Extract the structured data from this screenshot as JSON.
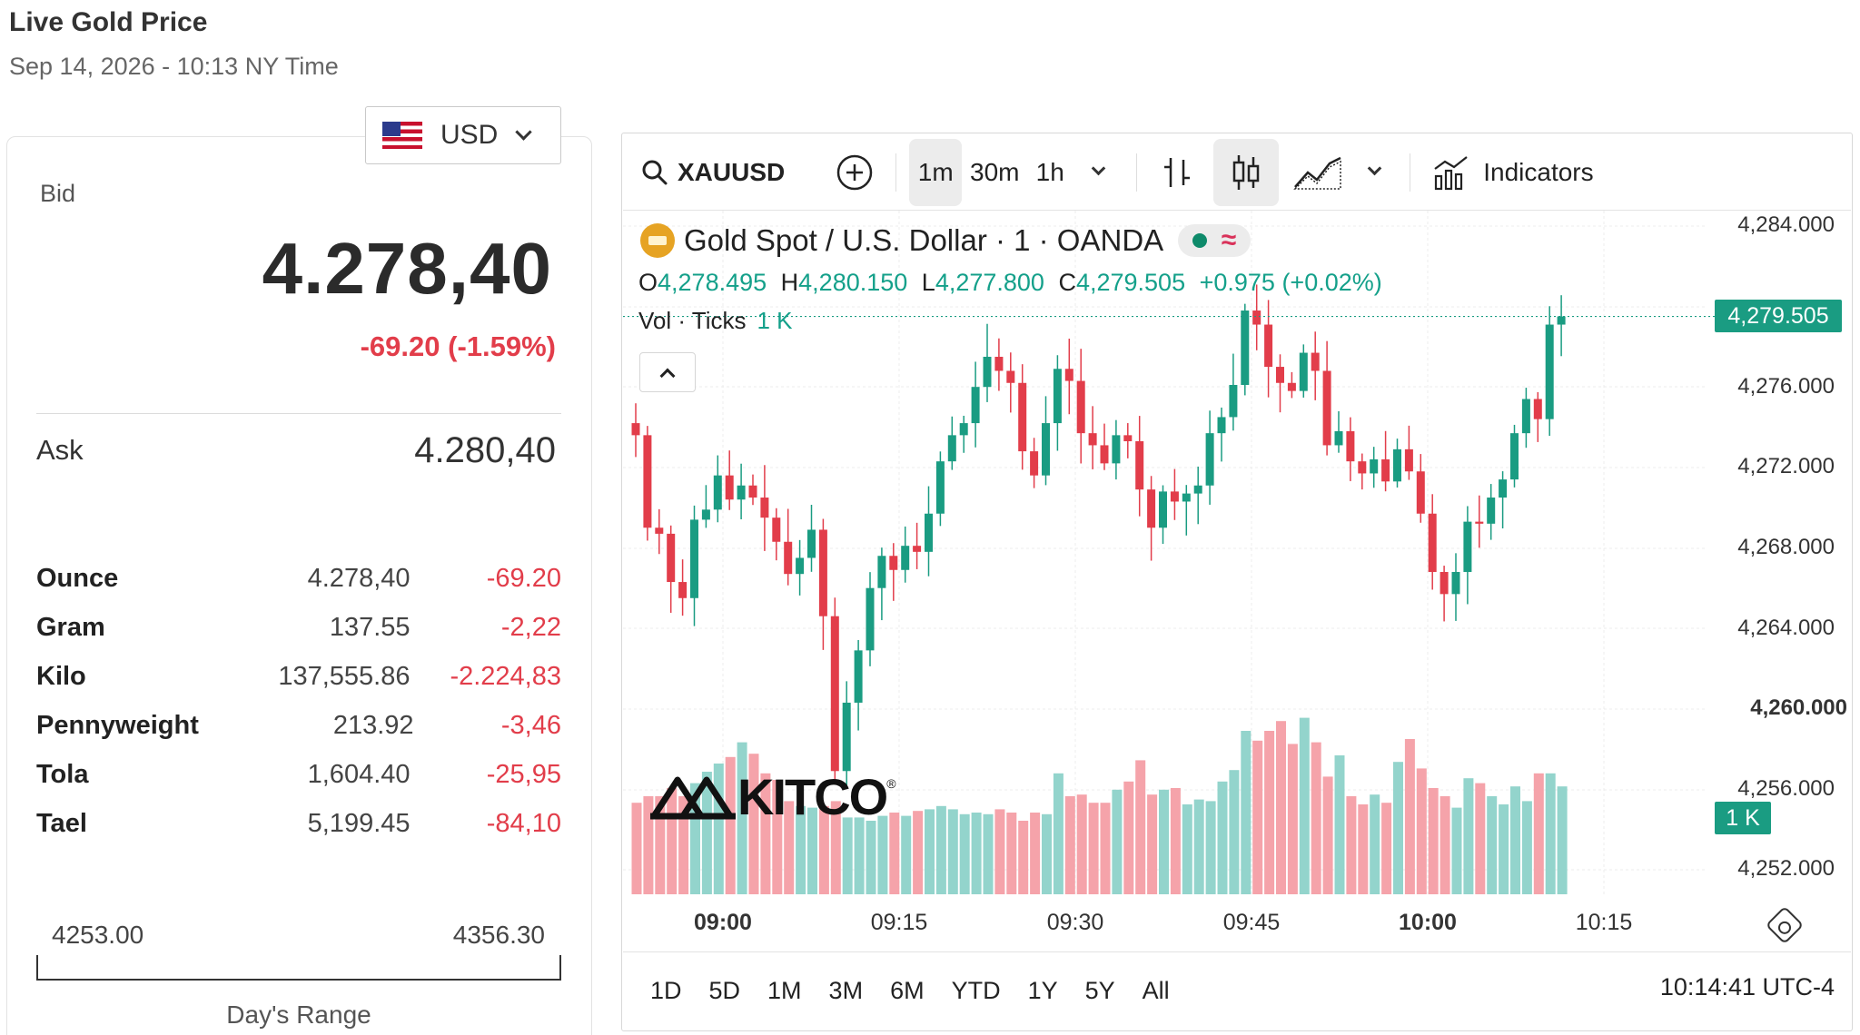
{
  "header": {
    "title": "Live Gold Price",
    "subtitle": "Sep 14, 2026 - 10:13 NY Time"
  },
  "currency": {
    "code": "USD",
    "flag_icon": "us-flag-icon"
  },
  "bid": {
    "label": "Bid",
    "value": "4.278,40",
    "change": "-69.20 (-1.59%)"
  },
  "ask": {
    "label": "Ask",
    "value": "4.280,40"
  },
  "units": [
    {
      "name": "Ounce",
      "price": "4.278,40",
      "change": "-69.20"
    },
    {
      "name": "Gram",
      "price": "137.55",
      "change": "-2,22"
    },
    {
      "name": "Kilo",
      "price": "137,555.86",
      "change": "-2.224,83"
    },
    {
      "name": "Pennyweight",
      "price": "213.92",
      "change": "-3,46"
    },
    {
      "name": "Tola",
      "price": "1,604.40",
      "change": "-25,95"
    },
    {
      "name": "Tael",
      "price": "5,199.45",
      "change": "-84,10"
    }
  ],
  "day_range": {
    "low": "4253.00",
    "high": "4356.30",
    "label": "Day's Range"
  },
  "toolbar": {
    "symbol": "XAUUSD",
    "intervals": [
      "1m",
      "30m",
      "1h"
    ],
    "active_interval": "1m",
    "indicators_label": "Indicators"
  },
  "chart_header": {
    "title": "Gold Spot / U.S. Dollar · 1 · OANDA",
    "o_label": "O",
    "o": "4,278.495",
    "h_label": "H",
    "h": "4,280.150",
    "l_label": "L",
    "l": "4,277.800",
    "c_label": "C",
    "c": "4,279.505",
    "change": "+0.975 (+0.02%)",
    "vol_label": "Vol · Ticks",
    "vol_value": "1 K"
  },
  "price_tag": "4,279.505",
  "vol_tag": "1 K",
  "logo": {
    "text": "KITCO",
    "reg": "®"
  },
  "range_buttons": [
    "1D",
    "5D",
    "1M",
    "3M",
    "6M",
    "YTD",
    "1Y",
    "5Y",
    "All"
  ],
  "clock": "10:14:41 UTC-4",
  "colors": {
    "up": "#1a9c82",
    "down": "#e23d4a",
    "vol_up": "#93d4cc",
    "vol_down": "#f5a3aa"
  },
  "chart_data": {
    "type": "candlestick",
    "yaxis": {
      "ticks": [
        "4,284.000",
        "4,276.000",
        "4,272.000",
        "4,268.000",
        "4,264.000",
        "4,260.000",
        "4,256.000",
        "4,252.000"
      ],
      "bold_tick": "4,260.000",
      "range": [
        4250.0,
        4284.6
      ]
    },
    "xaxis": {
      "ticks": [
        {
          "label": "09:00",
          "bold": true
        },
        {
          "label": "09:15",
          "bold": false
        },
        {
          "label": "09:30",
          "bold": false
        },
        {
          "label": "09:45",
          "bold": false
        },
        {
          "label": "10:00",
          "bold": true
        },
        {
          "label": "10:15",
          "bold": false
        }
      ]
    },
    "last_price": 4279.505,
    "candles_close": [
      4273.6,
      4269.0,
      4268.7,
      4266.3,
      4265.5,
      4269.4,
      4269.9,
      4271.6,
      4270.4,
      4271.1,
      4270.5,
      4269.5,
      4268.3,
      4266.7,
      4267.5,
      4268.9,
      4264.6,
      4256.9,
      4260.3,
      4262.9,
      4266.0,
      4267.6,
      4266.9,
      4268.1,
      4267.8,
      4269.7,
      4272.3,
      4273.6,
      4274.2,
      4276.0,
      4277.5,
      4276.8,
      4276.2,
      4272.8,
      4271.6,
      4274.2,
      4276.9,
      4276.3,
      4273.7,
      4273.1,
      4272.2,
      4273.6,
      4273.3,
      4270.9,
      4269.0,
      4270.8,
      4270.3,
      4270.7,
      4271.1,
      4273.7,
      4274.5,
      4276.1,
      4279.8,
      4279.1,
      4277.0,
      4276.2,
      4275.8,
      4277.7,
      4276.8,
      4273.1,
      4273.8,
      4272.3,
      4271.7,
      4272.4,
      4271.3,
      4272.9,
      4271.8,
      4269.7,
      4266.8,
      4265.7,
      4266.8,
      4269.3,
      4269.2,
      4270.5,
      4271.4,
      4273.7,
      4275.4,
      4274.4,
      4279.1,
      4279.505
    ],
    "volume_relative": [
      0.56,
      0.6,
      0.6,
      0.65,
      0.6,
      0.68,
      0.75,
      0.8,
      0.84,
      0.93,
      0.86,
      0.74,
      0.7,
      0.57,
      0.54,
      0.53,
      0.54,
      0.57,
      0.47,
      0.47,
      0.45,
      0.48,
      0.5,
      0.48,
      0.51,
      0.52,
      0.54,
      0.52,
      0.49,
      0.5,
      0.49,
      0.52,
      0.5,
      0.45,
      0.5,
      0.49,
      0.74,
      0.6,
      0.61,
      0.56,
      0.56,
      0.64,
      0.69,
      0.82,
      0.61,
      0.64,
      0.65,
      0.55,
      0.58,
      0.57,
      0.69,
      0.76,
      1.0,
      0.94,
      1.0,
      1.06,
      0.92,
      1.08,
      0.93,
      0.72,
      0.85,
      0.6,
      0.55,
      0.61,
      0.56,
      0.81,
      0.95,
      0.77,
      0.65,
      0.6,
      0.53,
      0.71,
      0.68,
      0.6,
      0.55,
      0.66,
      0.57,
      0.74,
      0.74,
      0.66
    ]
  }
}
